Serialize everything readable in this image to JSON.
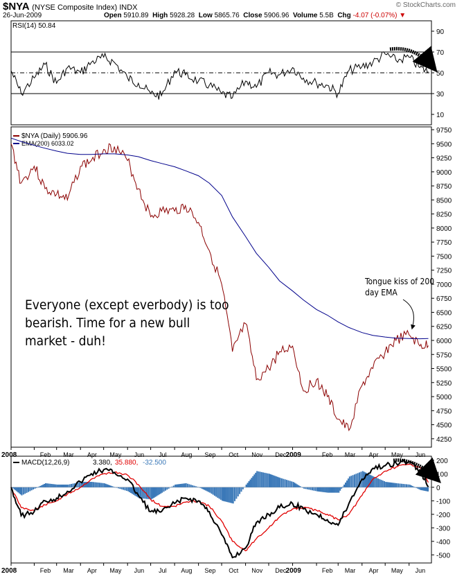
{
  "header": {
    "symbol": "$NYA",
    "name": "(NYSE Composite Index) INDX",
    "date": "26-Jun-2009",
    "brand": "© StockCharts.com",
    "open_label": "Open",
    "open": "5910.89",
    "high_label": "High",
    "high": "5928.28",
    "low_label": "Low",
    "low": "5865.76",
    "close_label": "Close",
    "close": "5906.96",
    "volume_label": "Volume",
    "volume": "5.5B",
    "chg_label": "Chg",
    "chg": "-4.07 (-0.07%)"
  },
  "colors": {
    "price": "#8b0000",
    "ema": "#00008b",
    "macd": "#000000",
    "signal": "#e00000",
    "hist": "#3a78b8",
    "arrow": "#000000"
  },
  "chart_data": [
    {
      "type": "line",
      "name": "rsi",
      "legend": "RSI(14) 50.84",
      "ylim": [
        0,
        100
      ],
      "yticks": [
        90,
        70,
        50,
        30,
        10
      ],
      "guides": [
        70,
        50,
        30
      ],
      "grid": false,
      "x": [
        "2008-01-02",
        "2008-01-15",
        "2008-02-01",
        "2008-02-15",
        "2008-03-01",
        "2008-03-15",
        "2008-04-01",
        "2008-04-15",
        "2008-05-01",
        "2008-05-15",
        "2008-06-01",
        "2008-06-15",
        "2008-07-01",
        "2008-07-15",
        "2008-08-01",
        "2008-08-15",
        "2008-09-01",
        "2008-09-15",
        "2008-10-01",
        "2008-10-15",
        "2008-11-01",
        "2008-11-15",
        "2008-12-01",
        "2008-12-15",
        "2009-01-01",
        "2009-01-15",
        "2009-02-01",
        "2009-02-15",
        "2009-03-01",
        "2009-03-15",
        "2009-04-01",
        "2009-04-15",
        "2009-05-01",
        "2009-05-15",
        "2009-06-01",
        "2009-06-15",
        "2009-06-26"
      ],
      "values": [
        52,
        30,
        45,
        58,
        40,
        55,
        50,
        60,
        65,
        60,
        45,
        40,
        30,
        28,
        52,
        48,
        42,
        38,
        30,
        26,
        42,
        36,
        50,
        48,
        55,
        45,
        40,
        38,
        30,
        52,
        56,
        60,
        68,
        62,
        65,
        55,
        51
      ]
    },
    {
      "type": "line",
      "name": "price",
      "legend_price": "$NYA (Daily) 5906.96",
      "legend_ema": "EMA(200) 6033.02",
      "ylim": [
        4100,
        9800
      ],
      "yticks": [
        9750,
        9500,
        9250,
        9000,
        8750,
        8500,
        8250,
        8000,
        7750,
        7500,
        7250,
        7000,
        6750,
        6500,
        6250,
        6000,
        5750,
        5500,
        5250,
        5000,
        4750,
        4500,
        4250
      ],
      "xtick_labels": [
        "2008",
        "Feb",
        "Mar",
        "Apr",
        "May",
        "Jun",
        "Jul",
        "Aug",
        "Sep",
        "Oct",
        "Nov",
        "Dec",
        "2009",
        "Feb",
        "Mar",
        "Apr",
        "May",
        "Jun"
      ],
      "x": [
        "2008-01-02",
        "2008-01-15",
        "2008-02-01",
        "2008-02-15",
        "2008-03-01",
        "2008-03-15",
        "2008-04-01",
        "2008-04-15",
        "2008-05-01",
        "2008-05-15",
        "2008-06-01",
        "2008-06-15",
        "2008-07-01",
        "2008-07-15",
        "2008-08-01",
        "2008-08-15",
        "2008-09-01",
        "2008-09-15",
        "2008-10-01",
        "2008-10-15",
        "2008-11-01",
        "2008-11-15",
        "2008-12-01",
        "2008-12-15",
        "2009-01-01",
        "2009-01-15",
        "2009-02-01",
        "2009-02-15",
        "2009-03-01",
        "2009-03-15",
        "2009-04-01",
        "2009-04-15",
        "2009-05-01",
        "2009-05-15",
        "2009-06-01",
        "2009-06-15",
        "2009-06-26"
      ],
      "series": [
        {
          "name": "$NYA",
          "values": [
            9500,
            8800,
            9100,
            8700,
            8600,
            8500,
            9100,
            9200,
            9400,
            9450,
            9200,
            8700,
            8200,
            8300,
            8300,
            8400,
            8100,
            7600,
            7000,
            5800,
            6300,
            5300,
            5500,
            5800,
            5900,
            5100,
            5300,
            5000,
            4600,
            4400,
            5200,
            5500,
            5800,
            6000,
            6100,
            5900,
            5907
          ]
        },
        {
          "name": "EMA(200)",
          "values": [
            9600,
            9540,
            9470,
            9420,
            9370,
            9330,
            9310,
            9310,
            9320,
            9320,
            9300,
            9270,
            9200,
            9150,
            9090,
            9020,
            8930,
            8800,
            8580,
            8200,
            7850,
            7550,
            7300,
            7060,
            6880,
            6720,
            6550,
            6450,
            6330,
            6230,
            6140,
            6090,
            6060,
            6040,
            6035,
            6030,
            6033
          ]
        }
      ]
    },
    {
      "type": "line",
      "name": "macd",
      "legend_label": "MACD(12,26,9)",
      "legend_macd": "3.380",
      "legend_signal": "35.880",
      "legend_hist": "-32.500",
      "ylim": [
        -560,
        230
      ],
      "yticks": [
        200,
        100,
        0,
        -100,
        -200,
        -300,
        -400,
        -500
      ],
      "xtick_labels": [
        "2008",
        "Feb",
        "Mar",
        "Apr",
        "May",
        "Jun",
        "Jul",
        "Aug",
        "Sep",
        "Oct",
        "Nov",
        "Dec",
        "2009",
        "Feb",
        "Mar",
        "Apr",
        "May",
        "Jun"
      ],
      "x": [
        "2008-01-02",
        "2008-01-15",
        "2008-02-01",
        "2008-02-15",
        "2008-03-01",
        "2008-03-15",
        "2008-04-01",
        "2008-04-15",
        "2008-05-01",
        "2008-05-15",
        "2008-06-01",
        "2008-06-15",
        "2008-07-01",
        "2008-07-15",
        "2008-08-01",
        "2008-08-15",
        "2008-09-01",
        "2008-09-15",
        "2008-10-01",
        "2008-10-15",
        "2008-11-01",
        "2008-11-15",
        "2008-12-01",
        "2008-12-15",
        "2009-01-01",
        "2009-01-15",
        "2009-02-01",
        "2009-02-15",
        "2009-03-01",
        "2009-03-15",
        "2009-04-01",
        "2009-04-15",
        "2009-05-01",
        "2009-05-15",
        "2009-06-01",
        "2009-06-15",
        "2009-06-26"
      ],
      "series": [
        {
          "name": "MACD",
          "values": [
            0,
            -210,
            -180,
            -100,
            -80,
            -30,
            40,
            100,
            130,
            110,
            60,
            -60,
            -180,
            -180,
            -120,
            -80,
            -100,
            -180,
            -350,
            -520,
            -450,
            -260,
            -200,
            -150,
            -120,
            -160,
            -200,
            -240,
            -280,
            -120,
            60,
            140,
            160,
            180,
            190,
            130,
            3.38
          ]
        },
        {
          "name": "Signal",
          "values": [
            0,
            -150,
            -170,
            -130,
            -100,
            -50,
            0,
            60,
            100,
            110,
            90,
            20,
            -90,
            -140,
            -140,
            -110,
            -100,
            -140,
            -250,
            -400,
            -470,
            -380,
            -300,
            -220,
            -160,
            -150,
            -170,
            -200,
            -240,
            -200,
            -60,
            60,
            120,
            150,
            170,
            150,
            35.88
          ]
        },
        {
          "name": "Histogram",
          "values": [
            0,
            -60,
            -10,
            30,
            20,
            20,
            40,
            40,
            30,
            0,
            -30,
            -80,
            -90,
            -40,
            20,
            30,
            0,
            -40,
            -100,
            -120,
            20,
            120,
            100,
            70,
            40,
            -10,
            -30,
            -40,
            -40,
            80,
            120,
            80,
            40,
            30,
            20,
            -20,
            -32.5
          ]
        }
      ]
    }
  ],
  "annotations": {
    "tongue": "Tongue kiss of 200 day EMA",
    "main_lines": [
      "Everyone (except everbody) is too",
      "bearish. Time for a new bull",
      "market - duh!"
    ]
  }
}
